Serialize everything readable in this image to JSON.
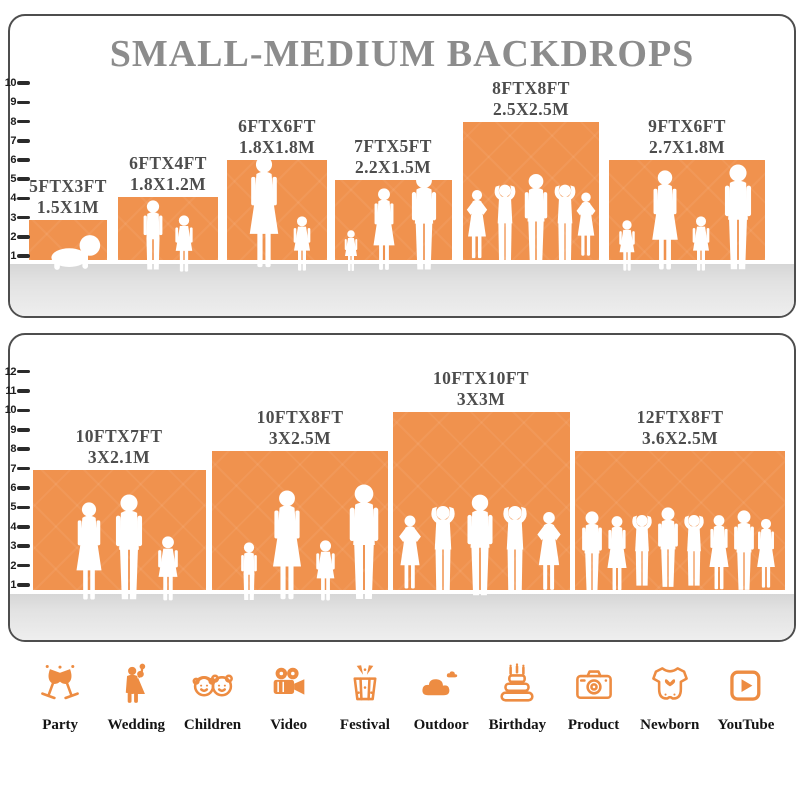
{
  "title": "SMALL-MEDIUM BACKDROPS",
  "colors": {
    "backdrop_orange": "#F0924E",
    "icon_orange": "#ED8C42",
    "title_gray": "#8C8C8C",
    "label_gray": "#4D4D4D",
    "floor_gray": "#DFDFDF"
  },
  "panel_small": {
    "ruler_max": 10,
    "backdrops": [
      {
        "size_ft": "5FTX3FT",
        "size_m": "1.5X1M",
        "height_units": 3
      },
      {
        "size_ft": "6FTX4FT",
        "size_m": "1.8X1.2M",
        "height_units": 4
      },
      {
        "size_ft": "6FTX6FT",
        "size_m": "1.8X1.8M",
        "height_units": 6
      },
      {
        "size_ft": "7FTX5FT",
        "size_m": "2.2X1.5M",
        "height_units": 5
      },
      {
        "size_ft": "8FTX8FT",
        "size_m": "2.5X2.5M",
        "height_units": 8
      },
      {
        "size_ft": "9FTX6FT",
        "size_m": "2.7X1.8M",
        "height_units": 6
      }
    ]
  },
  "panel_large": {
    "ruler_max": 12,
    "backdrops": [
      {
        "size_ft": "10FTX7FT",
        "size_m": "3X2.1M",
        "height_units": 7
      },
      {
        "size_ft": "10FTX8FT",
        "size_m": "3X2.5M",
        "height_units": 8
      },
      {
        "size_ft": "10FTX10FT",
        "size_m": "3X3M",
        "height_units": 10
      },
      {
        "size_ft": "12FTX8FT",
        "size_m": "3.6X2.5M",
        "height_units": 8
      }
    ]
  },
  "categories": [
    {
      "label": "Party"
    },
    {
      "label": "Wedding"
    },
    {
      "label": "Children"
    },
    {
      "label": "Video"
    },
    {
      "label": "Festival"
    },
    {
      "label": "Outdoor"
    },
    {
      "label": "Birthday"
    },
    {
      "label": "Product"
    },
    {
      "label": "Newborn"
    },
    {
      "label": "YouTube"
    }
  ]
}
